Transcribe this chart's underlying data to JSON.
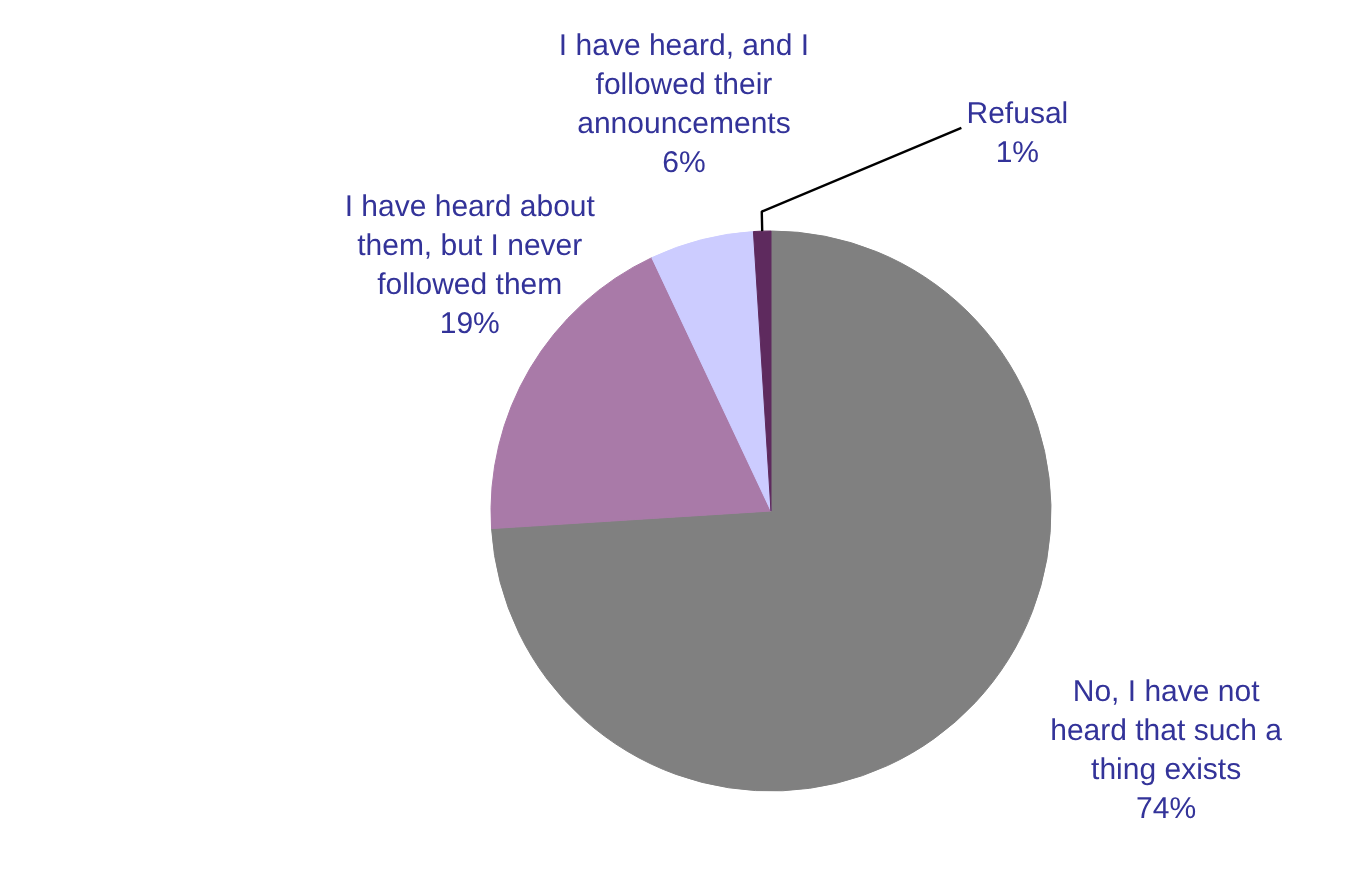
{
  "chart_data": {
    "type": "pie",
    "categories": [
      "No, I have not heard that such a thing exists",
      "I have heard about them, but I never followed them",
      "I have heard, and I followed their announcements",
      "Refusal"
    ],
    "values": [
      74,
      19,
      6,
      1
    ],
    "colors": [
      "#808080",
      "#a97aa8",
      "#ccccff",
      "#5e2a5e"
    ],
    "value_labels": [
      "74%",
      "19%",
      "6%",
      "1%"
    ],
    "legend": false
  }
}
